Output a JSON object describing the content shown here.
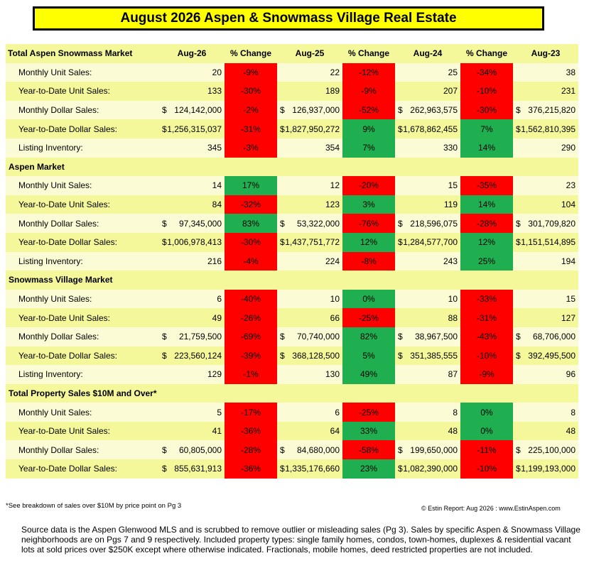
{
  "title": "August 2026 Aspen & Snowmass Village Real Estate",
  "columns": [
    "Aug-26",
    "% Change",
    "Aug-25",
    "% Change",
    "Aug-24",
    "% Change",
    "Aug-23"
  ],
  "sections": [
    {
      "name": "Total Aspen Snowmass Market",
      "header": true,
      "rows": [
        {
          "label": "Monthly Unit Sales:",
          "cells": [
            [
              "",
              "20"
            ],
            [
              "-9%",
              "red"
            ],
            [
              "",
              "22"
            ],
            [
              "-12%",
              "red"
            ],
            [
              "",
              "25"
            ],
            [
              "-34%",
              "red"
            ],
            [
              "",
              "38"
            ]
          ]
        },
        {
          "label": "Year-to-Date Unit Sales:",
          "cells": [
            [
              "",
              "133"
            ],
            [
              "-30%",
              "red"
            ],
            [
              "",
              "189"
            ],
            [
              "-9%",
              "red"
            ],
            [
              "",
              "207"
            ],
            [
              "-10%",
              "red"
            ],
            [
              "",
              "231"
            ]
          ]
        },
        {
          "label": "Monthly Dollar Sales:",
          "cells": [
            [
              "$",
              "124,142,000"
            ],
            [
              "-2%",
              "red"
            ],
            [
              "$",
              "126,937,000"
            ],
            [
              "-52%",
              "red"
            ],
            [
              "$",
              "262,963,575"
            ],
            [
              "-30%",
              "red"
            ],
            [
              "$",
              "376,215,820"
            ]
          ]
        },
        {
          "label": "Year-to-Date Dollar Sales:",
          "cells": [
            [
              "$",
              "1,256,315,037"
            ],
            [
              "-31%",
              "red"
            ],
            [
              "$",
              "1,827,950,272"
            ],
            [
              "9%",
              "green"
            ],
            [
              "$",
              "1,678,862,455"
            ],
            [
              "7%",
              "green"
            ],
            [
              "$",
              "1,562,810,395"
            ]
          ]
        },
        {
          "label": "Listing Inventory:",
          "cells": [
            [
              "",
              "345"
            ],
            [
              "-3%",
              "red"
            ],
            [
              "",
              "354"
            ],
            [
              "7%",
              "green"
            ],
            [
              "",
              "330"
            ],
            [
              "14%",
              "green"
            ],
            [
              "",
              "290"
            ]
          ]
        }
      ]
    },
    {
      "name": "Aspen Market",
      "rows": [
        {
          "label": "Monthly Unit Sales:",
          "cells": [
            [
              "",
              "14"
            ],
            [
              "17%",
              "green"
            ],
            [
              "",
              "12"
            ],
            [
              "-20%",
              "red"
            ],
            [
              "",
              "15"
            ],
            [
              "-35%",
              "red"
            ],
            [
              "",
              "23"
            ]
          ]
        },
        {
          "label": "Year-to-Date Unit Sales:",
          "cells": [
            [
              "",
              "84"
            ],
            [
              "-32%",
              "red"
            ],
            [
              "",
              "123"
            ],
            [
              "3%",
              "green"
            ],
            [
              "",
              "119"
            ],
            [
              "14%",
              "green"
            ],
            [
              "",
              "104"
            ]
          ]
        },
        {
          "label": "Monthly Dollar Sales:",
          "cells": [
            [
              "$",
              "97,345,000"
            ],
            [
              "83%",
              "green"
            ],
            [
              "$",
              "53,322,000"
            ],
            [
              "-76%",
              "red"
            ],
            [
              "$",
              "218,596,075"
            ],
            [
              "-28%",
              "red"
            ],
            [
              "$",
              "301,709,820"
            ]
          ]
        },
        {
          "label": "Year-to-Date Dollar Sales:",
          "cells": [
            [
              "$",
              "1,006,978,413"
            ],
            [
              "-30%",
              "red"
            ],
            [
              "$",
              "1,437,751,772"
            ],
            [
              "12%",
              "green"
            ],
            [
              "$",
              "1,284,577,700"
            ],
            [
              "12%",
              "green"
            ],
            [
              "$",
              "1,151,514,895"
            ]
          ]
        },
        {
          "label": "Listing Inventory:",
          "cells": [
            [
              "",
              "216"
            ],
            [
              "-4%",
              "red"
            ],
            [
              "",
              "224"
            ],
            [
              "-8%",
              "red"
            ],
            [
              "",
              "243"
            ],
            [
              "25%",
              "green"
            ],
            [
              "",
              "194"
            ]
          ]
        }
      ]
    },
    {
      "name": "Snowmass Village Market",
      "rows": [
        {
          "label": "Monthly Unit Sales:",
          "cells": [
            [
              "",
              "6"
            ],
            [
              "-40%",
              "red"
            ],
            [
              "",
              "10"
            ],
            [
              "0%",
              "green"
            ],
            [
              "",
              "10"
            ],
            [
              "-33%",
              "red"
            ],
            [
              "",
              "15"
            ]
          ]
        },
        {
          "label": "Year-to-Date Unit Sales:",
          "cells": [
            [
              "",
              "49"
            ],
            [
              "-26%",
              "red"
            ],
            [
              "",
              "66"
            ],
            [
              "-25%",
              "red"
            ],
            [
              "",
              "88"
            ],
            [
              "-31%",
              "red"
            ],
            [
              "",
              "127"
            ]
          ]
        },
        {
          "label": "Monthly Dollar Sales:",
          "cells": [
            [
              "$",
              "21,759,500"
            ],
            [
              "-69%",
              "red"
            ],
            [
              "$",
              "70,740,000"
            ],
            [
              "82%",
              "green"
            ],
            [
              "$",
              "38,967,500"
            ],
            [
              "-43%",
              "red"
            ],
            [
              "$",
              "68,706,000"
            ]
          ]
        },
        {
          "label": "Year-to-Date Dollar Sales:",
          "cells": [
            [
              "$",
              "223,560,124"
            ],
            [
              "-39%",
              "red"
            ],
            [
              "$",
              "368,128,500"
            ],
            [
              "5%",
              "green"
            ],
            [
              "$",
              "351,385,555"
            ],
            [
              "-10%",
              "red"
            ],
            [
              "$",
              "392,495,500"
            ]
          ]
        },
        {
          "label": "Listing Inventory:",
          "cells": [
            [
              "",
              "129"
            ],
            [
              "-1%",
              "red"
            ],
            [
              "",
              "130"
            ],
            [
              "49%",
              "green"
            ],
            [
              "",
              "87"
            ],
            [
              "-9%",
              "red"
            ],
            [
              "",
              "96"
            ]
          ]
        }
      ]
    },
    {
      "name": "Total Property Sales $10M and Over*",
      "rows": [
        {
          "label": "Monthly Unit Sales:",
          "cells": [
            [
              "",
              "5"
            ],
            [
              "-17%",
              "red"
            ],
            [
              "",
              "6"
            ],
            [
              "-25%",
              "red"
            ],
            [
              "",
              "8"
            ],
            [
              "0%",
              "green"
            ],
            [
              "",
              "8"
            ]
          ]
        },
        {
          "label": "Year-to-Date Unit Sales:",
          "cells": [
            [
              "",
              "41"
            ],
            [
              "-36%",
              "red"
            ],
            [
              "",
              "64"
            ],
            [
              "33%",
              "green"
            ],
            [
              "",
              "48"
            ],
            [
              "0%",
              "green"
            ],
            [
              "",
              "48"
            ]
          ]
        },
        {
          "label": "Monthly Dollar Sales:",
          "cells": [
            [
              "$",
              "60,805,000"
            ],
            [
              "-28%",
              "red"
            ],
            [
              "$",
              "84,680,000"
            ],
            [
              "-58%",
              "red"
            ],
            [
              "$",
              "199,650,000"
            ],
            [
              "-11%",
              "red"
            ],
            [
              "$",
              "225,100,000"
            ]
          ]
        },
        {
          "label": "Year-to-Date Dollar Sales:",
          "cells": [
            [
              "$",
              "855,631,913"
            ],
            [
              "-36%",
              "red"
            ],
            [
              "$",
              "1,335,176,660"
            ],
            [
              "23%",
              "green"
            ],
            [
              "$",
              "1,082,390,000"
            ],
            [
              "-10%",
              "red"
            ],
            [
              "$",
              "1,199,193,000"
            ]
          ]
        }
      ]
    }
  ],
  "footnote": "*See breakdown of sales over $10M by price point on Pg 3",
  "credit": "© Estin Report: Aug 2026 : www.EstinAspen.com",
  "source": "Source data is the Aspen Glenwood MLS and is scrubbed to remove outlier or misleading sales (Pg 3). Sales by specific Aspen & Snowmass Village neighborhoods are on Pgs 7 and 9 respectively. Included property types: single family homes, condos, town-homes, duplexes & residential vacant lots at sold prices over $250K except where otherwise indicated. Fractionals, mobile homes, deed restricted properties are not included.",
  "colors": {
    "title_bg": "#ffff00",
    "band_light": "#fbfcd6",
    "band_dark": "#f4f79a",
    "negative": "#ff0000",
    "positive": "#1fae50"
  }
}
